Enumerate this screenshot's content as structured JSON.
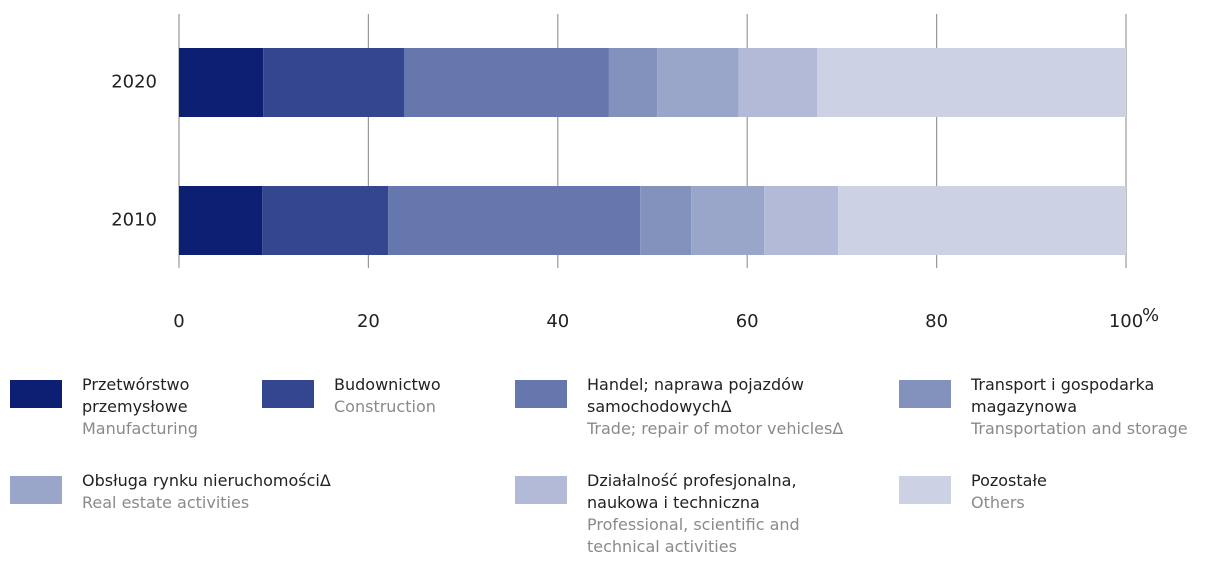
{
  "chart_data": {
    "type": "stacked_barh",
    "categories": [
      "2020",
      "2010"
    ],
    "series": [
      {
        "name": "Przetwórstwo przemysłowe",
        "name_en": "Manufacturing",
        "color": "#0d1f73",
        "values": [
          8.9,
          8.8
        ]
      },
      {
        "name": "Budownictwo",
        "name_en": "Construction",
        "color": "#33468f",
        "values": [
          14.9,
          13.3
        ]
      },
      {
        "name": "Handel; naprawa pojazdów samochodowychΔ",
        "name_en": "Trade; repair of motor vehiclesΔ",
        "color": "#6677ae",
        "values": [
          21.6,
          26.6
        ]
      },
      {
        "name": "Transport i gospodarka magazynowa",
        "name_en": "Transportation and storage",
        "color": "#8391bd",
        "values": [
          5.1,
          5.4
        ]
      },
      {
        "name": "Obsługa rynku nieruchomościΔ",
        "name_en": "Real estate activities",
        "color": "#99a6ca",
        "values": [
          8.6,
          7.7
        ]
      },
      {
        "name": "Działalność profesjonalna, naukowa i techniczna",
        "name_en": "Professional, scientific and technical activities",
        "color": "#b2bad7",
        "values": [
          8.3,
          7.8
        ]
      },
      {
        "name": "Pozostałe",
        "name_en": "Others",
        "color": "#ccd1e4",
        "values": [
          32.6,
          30.4
        ]
      }
    ],
    "x_label": "%",
    "xlim": [
      0,
      100
    ],
    "xticks": [
      0,
      20,
      40,
      60,
      80,
      100
    ],
    "grid": true
  }
}
